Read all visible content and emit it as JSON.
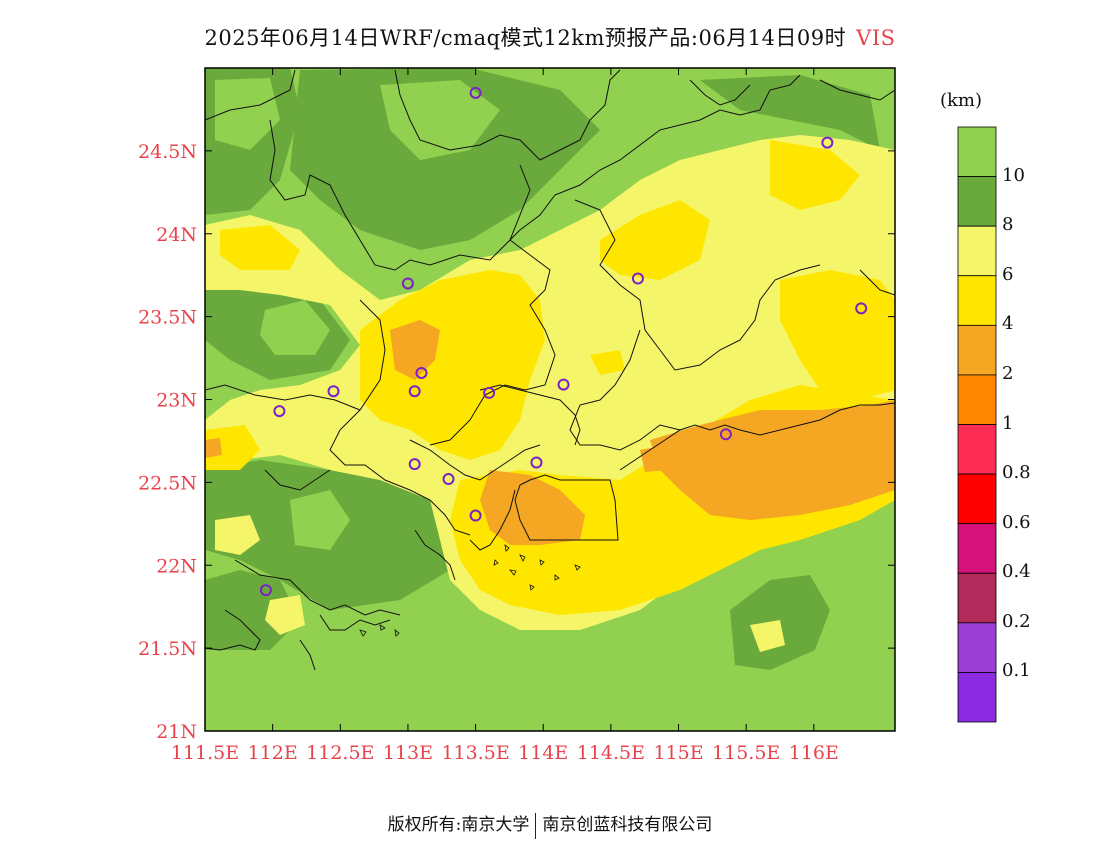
{
  "title": {
    "main": "2025年06月14日WRF/cmaq模式12km预报产品:06月14日09时",
    "variable": "VIS"
  },
  "axes": {
    "lon_ticks": [
      "111.5E",
      "112E",
      "112.5E",
      "113E",
      "113.5E",
      "114E",
      "114.5E",
      "115E",
      "115.5E",
      "116E"
    ],
    "lat_ticks": [
      "24.5N",
      "24N",
      "23.5N",
      "23N",
      "22.5N",
      "22N",
      "21.5N",
      "21N"
    ]
  },
  "colorbar": {
    "unit": "(km)",
    "labels": [
      "10",
      "8",
      "6",
      "4",
      "2",
      "1",
      "0.8",
      "0.6",
      "0.4",
      "0.2",
      "0.1"
    ],
    "colors": [
      "#92d050",
      "#6aa93b",
      "#f5f56a",
      "#ffe600",
      "#f5a623",
      "#ff8800",
      "#ff2d55",
      "#ff0000",
      "#d4127a",
      "#b02a5a",
      "#9b3fd6",
      "#8a2be2"
    ]
  },
  "stations": [
    {
      "lon": 113.5,
      "lat": 24.85
    },
    {
      "lon": 116.1,
      "lat": 24.55
    },
    {
      "lon": 113.0,
      "lat": 23.7
    },
    {
      "lon": 114.7,
      "lat": 23.73
    },
    {
      "lon": 116.35,
      "lat": 23.55
    },
    {
      "lon": 113.1,
      "lat": 23.16
    },
    {
      "lon": 112.45,
      "lat": 23.05
    },
    {
      "lon": 113.05,
      "lat": 23.05
    },
    {
      "lon": 113.6,
      "lat": 23.04
    },
    {
      "lon": 114.15,
      "lat": 23.09
    },
    {
      "lon": 112.05,
      "lat": 22.93
    },
    {
      "lon": 115.35,
      "lat": 22.79
    },
    {
      "lon": 113.05,
      "lat": 22.61
    },
    {
      "lon": 113.3,
      "lat": 22.52
    },
    {
      "lon": 113.95,
      "lat": 22.62
    },
    {
      "lon": 113.5,
      "lat": 22.3
    },
    {
      "lon": 111.95,
      "lat": 21.85
    }
  ],
  "footer": {
    "left": "版权所有:南京大学",
    "right": "南京创蓝科技有限公司"
  }
}
